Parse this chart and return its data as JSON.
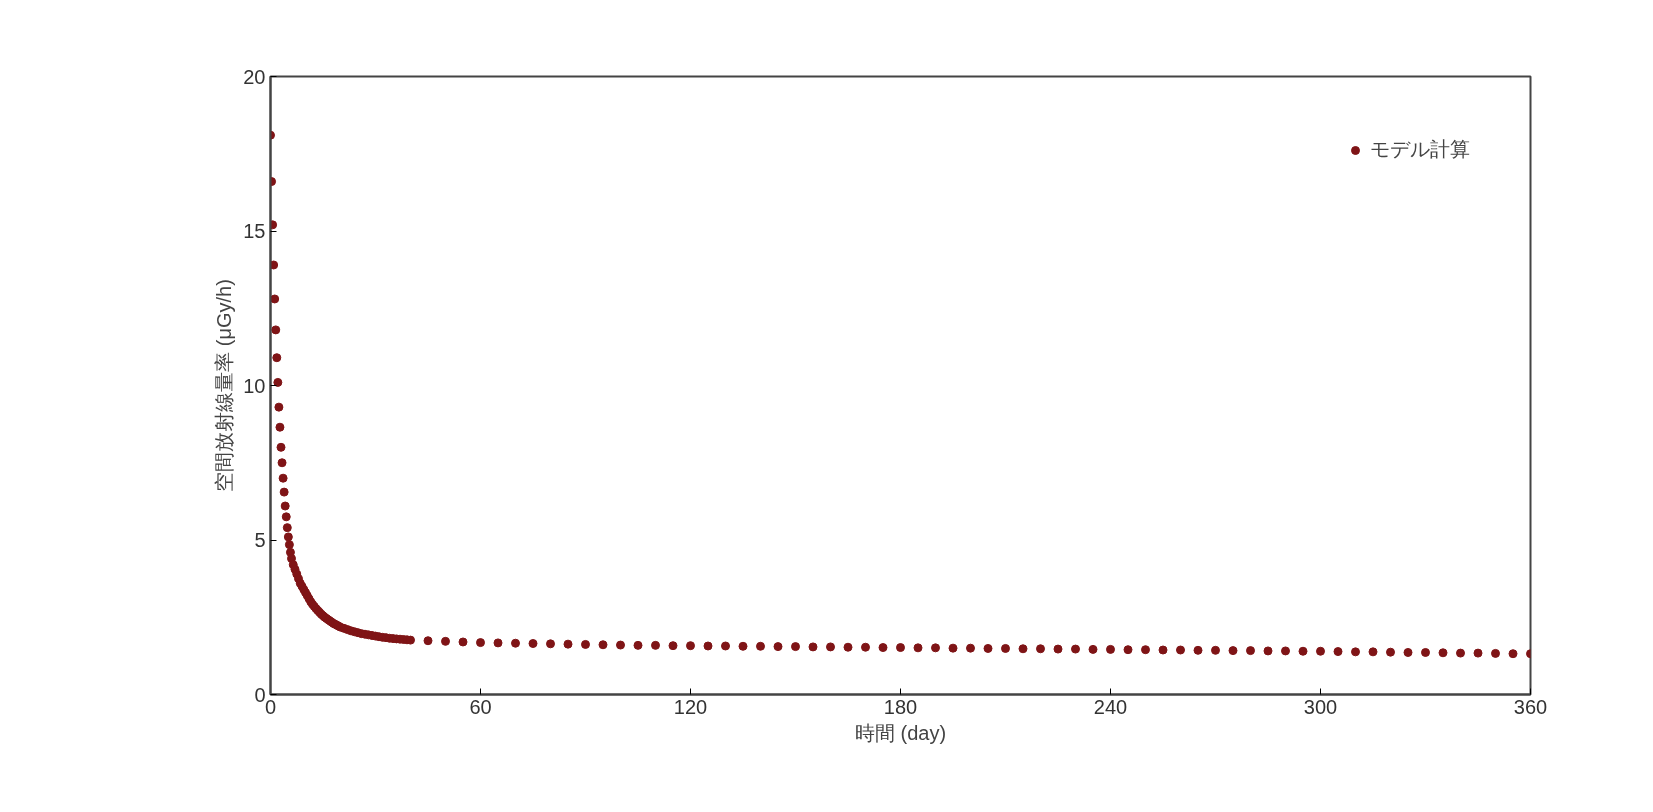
{
  "chart_data": {
    "type": "scatter",
    "xlabel": "時間 (day)",
    "ylabel": "空間放射線量率 (μGy/h)",
    "xlim": [
      0,
      360
    ],
    "ylim": [
      0,
      20
    ],
    "xticks": [
      0,
      60,
      120,
      180,
      240,
      300,
      360
    ],
    "yticks": [
      0,
      5,
      10,
      15,
      20
    ],
    "grid": false,
    "legend": "top right",
    "marker": "circle",
    "series": [
      {
        "name": "モデル計算",
        "color": "#7f1416",
        "x": [
          0,
          0.3,
          0.6,
          0.9,
          1.2,
          1.5,
          1.8,
          2.1,
          2.4,
          2.7,
          3,
          3.3,
          3.6,
          3.9,
          4.2,
          4.5,
          4.8,
          5.1,
          5.4,
          5.7,
          6,
          6.5,
          7,
          7.5,
          8,
          8.5,
          9,
          9.5,
          10,
          10.5,
          11,
          11.5,
          12,
          12.5,
          13,
          13.5,
          14,
          14.5,
          15,
          15.5,
          16,
          16.5,
          17,
          17.5,
          18,
          18.5,
          19,
          19.5,
          20,
          21,
          22,
          23,
          24,
          25,
          26,
          27,
          28,
          29,
          30,
          31,
          32,
          33,
          34,
          35,
          36,
          37,
          38,
          39,
          40,
          45,
          50,
          55,
          60,
          65,
          70,
          75,
          80,
          85,
          90,
          95,
          100,
          105,
          110,
          115,
          120,
          125,
          130,
          135,
          140,
          145,
          150,
          155,
          160,
          165,
          170,
          175,
          180,
          185,
          190,
          195,
          200,
          205,
          210,
          215,
          220,
          225,
          230,
          235,
          240,
          245,
          250,
          255,
          260,
          265,
          270,
          275,
          280,
          285,
          290,
          295,
          300,
          305,
          310,
          315,
          320,
          325,
          330,
          335,
          340,
          345,
          350,
          355,
          360
        ],
        "values": [
          18.1,
          16.6,
          15.2,
          13.9,
          12.8,
          11.8,
          10.9,
          10.1,
          9.3,
          8.65,
          8.0,
          7.5,
          7.0,
          6.55,
          6.1,
          5.75,
          5.4,
          5.1,
          4.85,
          4.6,
          4.4,
          4.2,
          4.05,
          3.9,
          3.75,
          3.6,
          3.5,
          3.4,
          3.3,
          3.2,
          3.1,
          3.0,
          2.92,
          2.85,
          2.78,
          2.72,
          2.66,
          2.6,
          2.55,
          2.5,
          2.46,
          2.42,
          2.38,
          2.34,
          2.3,
          2.27,
          2.24,
          2.21,
          2.18,
          2.14,
          2.1,
          2.06,
          2.03,
          2.0,
          1.97,
          1.95,
          1.93,
          1.91,
          1.89,
          1.87,
          1.85,
          1.84,
          1.82,
          1.81,
          1.8,
          1.79,
          1.78,
          1.77,
          1.76,
          1.74,
          1.72,
          1.7,
          1.68,
          1.67,
          1.66,
          1.65,
          1.64,
          1.63,
          1.62,
          1.61,
          1.6,
          1.59,
          1.59,
          1.58,
          1.58,
          1.57,
          1.57,
          1.56,
          1.56,
          1.55,
          1.55,
          1.54,
          1.54,
          1.53,
          1.53,
          1.52,
          1.52,
          1.51,
          1.51,
          1.5,
          1.5,
          1.49,
          1.49,
          1.48,
          1.48,
          1.47,
          1.47,
          1.46,
          1.46,
          1.45,
          1.45,
          1.44,
          1.44,
          1.43,
          1.43,
          1.42,
          1.42,
          1.41,
          1.41,
          1.4,
          1.4,
          1.39,
          1.38,
          1.38,
          1.37,
          1.36,
          1.36,
          1.35,
          1.34,
          1.34,
          1.33,
          1.32,
          1.32
        ]
      }
    ]
  }
}
